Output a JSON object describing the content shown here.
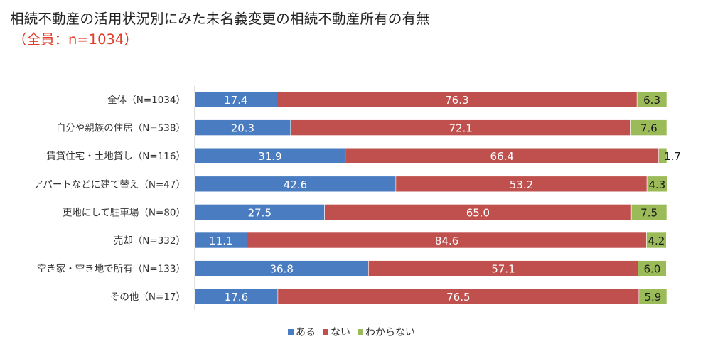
{
  "chart_data": {
    "type": "bar",
    "orientation": "horizontal",
    "stacked": true,
    "percent": true,
    "title": "相続不動産の活用状況別にみた未名義変更の相続不動産所有の有無",
    "subtitle": "（全員：n=1034）",
    "xlabel": "",
    "ylabel": "",
    "xlim": [
      0,
      100
    ],
    "grid": false,
    "legend_position": "bottom",
    "categories": [
      "全体（N=1034）",
      "自分や親族の住居（N=538）",
      "賃貸住宅・土地貸し（N=116）",
      "アパートなどに建て替え（N=47）",
      "更地にして駐車場（N=80）",
      "売却（N=332）",
      "空き家・空き地で所有（N=133）",
      "その他（N=17）"
    ],
    "series": [
      {
        "name": "ある",
        "color": "#4a7cc1",
        "label_color": "#ffffff",
        "values": [
          17.4,
          20.3,
          31.9,
          42.6,
          27.5,
          11.1,
          36.8,
          17.6
        ]
      },
      {
        "name": "ない",
        "color": "#c0504d",
        "label_color": "#ffffff",
        "values": [
          76.3,
          72.1,
          66.4,
          53.2,
          65.0,
          84.6,
          57.1,
          76.5
        ]
      },
      {
        "name": "わからない",
        "color": "#9bbb59",
        "label_color": "#1a1a1a",
        "values": [
          6.3,
          7.6,
          1.7,
          4.3,
          7.5,
          4.2,
          6.0,
          5.9
        ]
      }
    ]
  }
}
